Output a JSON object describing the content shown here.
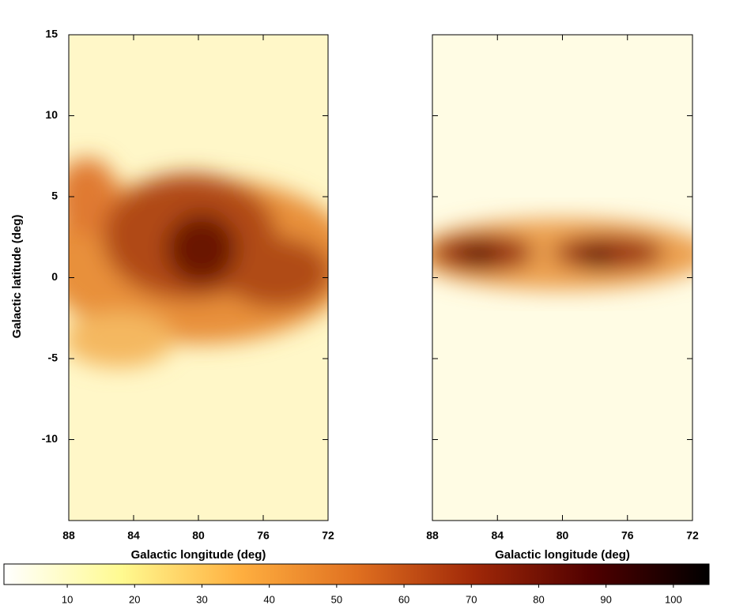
{
  "chart_data": [
    {
      "type": "heatmap",
      "xlabel": "Galactic longitude (deg)",
      "ylabel": "Galactic latitude (deg)",
      "xlim": [
        88,
        72
      ],
      "ylim": [
        -15,
        15
      ],
      "xticks": [
        88,
        84,
        80,
        76,
        72
      ],
      "yticks": [
        15,
        10,
        5,
        0,
        -5,
        -10
      ],
      "ytick_labels": true
    },
    {
      "type": "heatmap",
      "xlabel": "Galactic longitude (deg)",
      "xlim": [
        88,
        72
      ],
      "ylim": [
        -15,
        15
      ],
      "xticks": [
        88,
        84,
        80,
        76,
        72
      ],
      "yticks": [
        15,
        10,
        5,
        0,
        -5,
        -10
      ],
      "ytick_labels": false
    }
  ],
  "colorbar": {
    "clim": [
      0.6,
      105.3
    ],
    "ticks": [
      10,
      20,
      30,
      40,
      50,
      60,
      70,
      80,
      90,
      100
    ],
    "colormap": [
      "#ffffff",
      "#fffa90",
      "#ffb040",
      "#e07020",
      "#a02808",
      "#500000",
      "#000000"
    ]
  }
}
